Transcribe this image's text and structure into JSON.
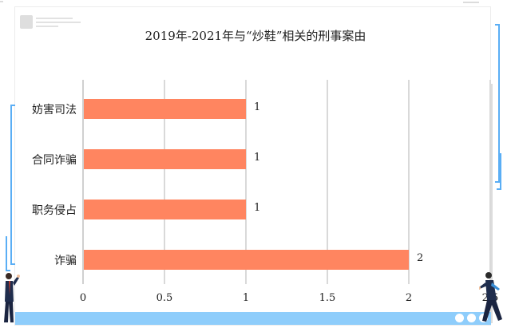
{
  "chart_data": {
    "type": "bar",
    "orientation": "horizontal",
    "title": "2019年-2021年与“炒鞋”相关的刑事案由",
    "categories": [
      "妨害司法",
      "合同诈骗",
      "职务侵占",
      "诈骗"
    ],
    "values": [
      1,
      1,
      1,
      2
    ],
    "value_labels": [
      "1",
      "1",
      "1",
      "2"
    ],
    "xlabel": "",
    "ylabel": "",
    "xlim": [
      0,
      2.5
    ],
    "x_ticks": [
      "0",
      "0.5",
      "1",
      "1.5",
      "2",
      "2.5"
    ],
    "grid": true,
    "legend": null,
    "bar_color": "#ff8560"
  },
  "decor": {
    "accent_color": "#8ecdfb",
    "bracket_color": "#5aaef5",
    "figures": [
      "businessman-left",
      "businessman-right"
    ]
  }
}
